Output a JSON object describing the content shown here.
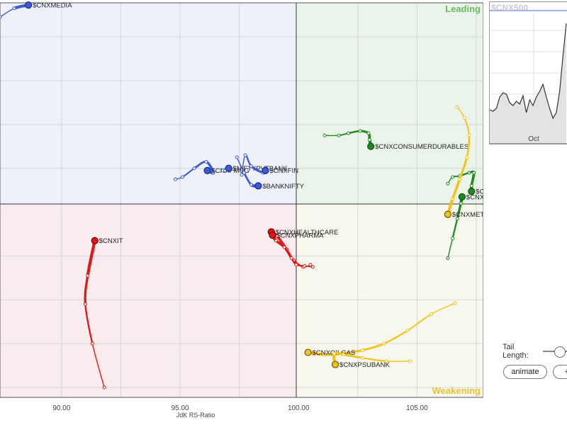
{
  "quadrant_labels": {
    "leading": "Leading",
    "weakening": "Weakening"
  },
  "colors": {
    "leading_bg": "#ebf4ea",
    "weakening_bg": "#f8f7ee",
    "lagging_bg": "#f8ecee",
    "improving_bg": "#eef0fa",
    "leading_label": "#6cba5f",
    "weakening_label": "#e8c232",
    "green": "#1e8a1e",
    "yellow": "#f2c41b",
    "red": "#e01818",
    "blue": "#3d5bd4"
  },
  "chart_data": {
    "type": "scatter",
    "title": "",
    "xlabel": "JdK RS-Ratio",
    "ylabel": "",
    "x_ticks": [
      "90.00",
      "95.00",
      "100.00",
      "105.00"
    ],
    "xlim": [
      87.4,
      107.8
    ],
    "ylim": [
      91.55,
      109.55
    ],
    "grid": true,
    "center": [
      100,
      100
    ],
    "series": [
      {
        "name": "$CNXMEDIA",
        "color": "blue",
        "points": [
          [
            87.4,
            108.9
          ],
          [
            88.0,
            109.3
          ],
          [
            88.6,
            109.45
          ]
        ]
      },
      {
        "name": "$CNXCONSUMERDURABLES",
        "color": "green",
        "points": [
          [
            101.1,
            103.5
          ],
          [
            101.7,
            103.5
          ],
          [
            102.1,
            103.6
          ],
          [
            102.6,
            103.7
          ],
          [
            102.95,
            103.6
          ],
          [
            103.0,
            103.3
          ],
          [
            103.05,
            103.0
          ]
        ]
      },
      {
        "name": "$CNXFMCG",
        "color": "blue",
        "points": [
          [
            94.8,
            101.5
          ],
          [
            95.1,
            101.6
          ],
          [
            95.6,
            102.0
          ],
          [
            96.1,
            102.3
          ],
          [
            96.4,
            101.8
          ],
          [
            96.15,
            101.9
          ]
        ]
      },
      {
        "name": "$NIFTYPVTBANK",
        "color": "blue",
        "points": [
          [
            96.8,
            101.9
          ],
          [
            96.9,
            101.9
          ],
          [
            97.05,
            102.0
          ]
        ]
      },
      {
        "name": "$CNXFIN",
        "color": "blue",
        "points": [
          [
            97.6,
            101.7
          ],
          [
            97.75,
            102.6
          ],
          [
            98.0,
            102.1
          ],
          [
            98.5,
            101.8
          ],
          [
            98.6,
            101.9
          ]
        ]
      },
      {
        "name": "$BANKNIFTY",
        "color": "blue",
        "points": [
          [
            97.4,
            102.5
          ],
          [
            97.7,
            101.8
          ],
          [
            98.0,
            101.25
          ],
          [
            98.3,
            101.2
          ]
        ]
      },
      {
        "name": "$CNXAUTO",
        "color": "green",
        "points": [
          [
            106.3,
            101.3
          ],
          [
            106.5,
            101.6
          ],
          [
            106.8,
            101.65
          ],
          [
            107.2,
            101.8
          ],
          [
            107.4,
            101.8
          ],
          [
            107.3,
            101.2
          ],
          [
            107.3,
            100.95
          ]
        ]
      },
      {
        "name": "$CNXREALTY",
        "color": "green",
        "points": [
          [
            106.3,
            97.9
          ],
          [
            106.5,
            98.8
          ],
          [
            106.7,
            99.7
          ],
          [
            106.85,
            100.4
          ],
          [
            106.9,
            100.7
          ]
        ]
      },
      {
        "name": "$CNXMETAL",
        "color": "yellow",
        "points": [
          [
            106.7,
            104.8
          ],
          [
            107.0,
            104.3
          ],
          [
            107.2,
            103.5
          ],
          [
            107.1,
            102.5
          ],
          [
            106.8,
            101.5
          ],
          [
            106.5,
            100.6
          ],
          [
            106.3,
            99.9
          ]
        ]
      },
      {
        "name": "$CNXIT",
        "color": "red",
        "points": [
          [
            91.8,
            92.0
          ],
          [
            91.3,
            94.0
          ],
          [
            91.0,
            95.8
          ],
          [
            91.1,
            97.1
          ],
          [
            91.4,
            98.7
          ]
        ]
      },
      {
        "name": "$CNXHEALTHCARE",
        "color": "red",
        "points": [
          [
            100.5,
            97.6
          ],
          [
            100.2,
            97.5
          ],
          [
            99.8,
            97.8
          ],
          [
            99.5,
            98.3
          ],
          [
            99.1,
            98.9
          ],
          [
            98.85,
            99.1
          ]
        ]
      },
      {
        "name": "$CNXPHARMA",
        "color": "red",
        "points": [
          [
            100.6,
            97.5
          ],
          [
            100.25,
            97.55
          ],
          [
            99.9,
            97.6
          ],
          [
            99.7,
            97.9
          ],
          [
            99.4,
            98.4
          ],
          [
            99.05,
            98.7
          ],
          [
            98.9,
            98.95
          ]
        ]
      },
      {
        "name": "$CNXOILGAS",
        "color": "yellow",
        "points": [
          [
            106.6,
            95.85
          ],
          [
            105.6,
            95.35
          ],
          [
            104.6,
            94.6
          ],
          [
            103.6,
            94.0
          ],
          [
            102.7,
            93.7
          ],
          [
            101.8,
            93.55
          ],
          [
            101.1,
            93.5
          ],
          [
            100.4,
            93.6
          ]
        ]
      },
      {
        "name": "$CNXPSUBANK",
        "color": "yellow",
        "points": [
          [
            104.7,
            93.2
          ],
          [
            103.7,
            93.2
          ],
          [
            102.7,
            93.35
          ],
          [
            101.9,
            93.5
          ],
          [
            101.5,
            93.55
          ],
          [
            101.55,
            93.05
          ]
        ]
      }
    ]
  },
  "mini_chart": {
    "title": "$CNX500",
    "x_label": "Oct",
    "values": [
      0.24,
      0.23,
      0.25,
      0.33,
      0.36,
      0.35,
      0.29,
      0.27,
      0.3,
      0.28,
      0.34,
      0.22,
      0.31,
      0.27,
      0.33,
      0.37,
      0.42,
      0.33,
      0.25,
      0.18,
      0.22,
      0.37,
      0.62,
      0.85
    ]
  },
  "controls": {
    "tail_length_label": "Tail Length:",
    "tail_length_level": 0.5,
    "animate_label": "animate",
    "plus_label": "+"
  }
}
